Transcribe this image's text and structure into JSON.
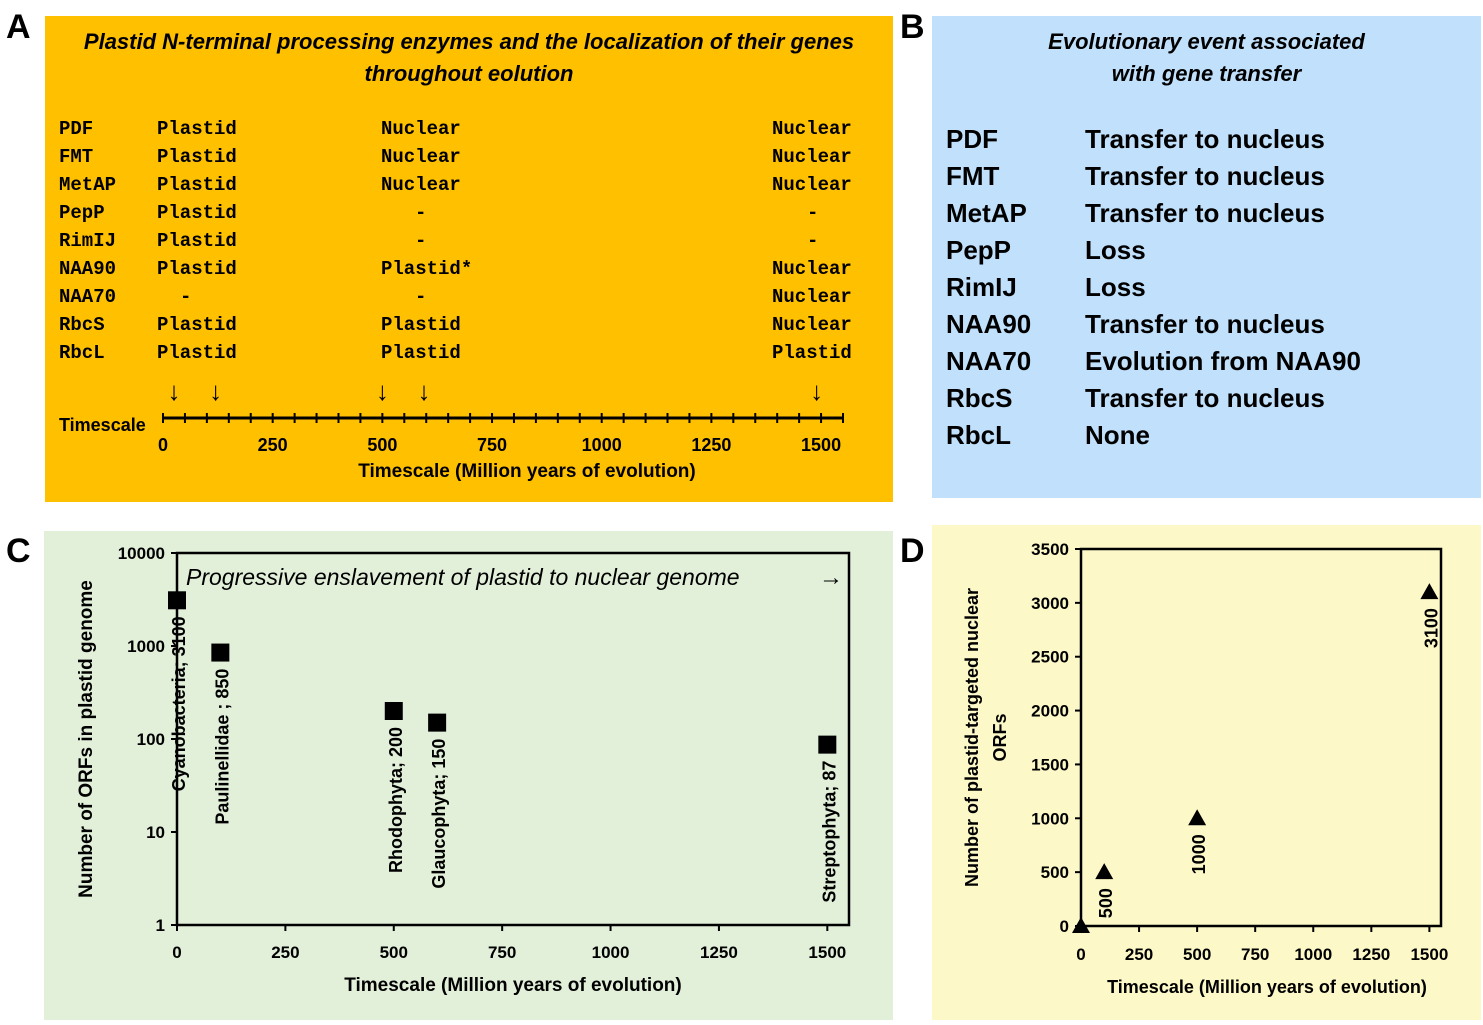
{
  "panelA": {
    "letter": "A",
    "title_line1": "Plastid N-terminal processing enzymes and the localization of their genes",
    "title_line2": "throughout eolution",
    "rows": [
      {
        "gene": "PDF",
        "c1": "Plastid",
        "c2": "Nuclear",
        "c3": "Nuclear"
      },
      {
        "gene": "FMT",
        "c1": "Plastid",
        "c2": "Nuclear",
        "c3": "Nuclear"
      },
      {
        "gene": "MetAP",
        "c1": "Plastid",
        "c2": "Nuclear",
        "c3": "Nuclear"
      },
      {
        "gene": "PepP",
        "c1": "Plastid",
        "c2": "-",
        "c3": "-"
      },
      {
        "gene": "RimIJ",
        "c1": "Plastid",
        "c2": "-",
        "c3": "-"
      },
      {
        "gene": "NAA90",
        "c1": "Plastid",
        "c2": "Plastid*",
        "c3": "Nuclear"
      },
      {
        "gene": "NAA70",
        "c1": "-",
        "c2": "-",
        "c3": "Nuclear"
      },
      {
        "gene": "RbcS",
        "c1": "Plastid",
        "c2": "Plastid",
        "c3": "Nuclear"
      },
      {
        "gene": "RbcL",
        "c1": "Plastid",
        "c2": "Plastid",
        "c3": "Plastid"
      }
    ],
    "timescale_label": "Timescale",
    "xlabel": "Timescale (Million years of evolution)",
    "arrow_glyph": "↓",
    "arrow_positions": [
      25,
      120,
      500,
      595,
      1490
    ],
    "xticks": [
      0,
      250,
      500,
      750,
      1000,
      1250,
      1500
    ],
    "xlim": [
      0,
      1550
    ]
  },
  "panelB": {
    "letter": "B",
    "title_line1": "Evolutionary event associated",
    "title_line2": "with gene transfer",
    "rows": [
      {
        "gene": "PDF",
        "event": "Transfer to nucleus"
      },
      {
        "gene": "FMT",
        "event": "Transfer to nucleus"
      },
      {
        "gene": "MetAP",
        "event": "Transfer to nucleus"
      },
      {
        "gene": "PepP",
        "event": "Loss"
      },
      {
        "gene": "RimIJ",
        "event": "Loss"
      },
      {
        "gene": "NAA90",
        "event": "Transfer to nucleus"
      },
      {
        "gene": "NAA70",
        "event": "Evolution from NAA90"
      },
      {
        "gene": "RbcS",
        "event": "Transfer to nucleus"
      },
      {
        "gene": "RbcL",
        "event": "None"
      }
    ]
  },
  "panelC": {
    "letter": "C"
  },
  "panelD": {
    "letter": "D"
  },
  "chart_data": [
    {
      "panel": "C",
      "type": "scatter",
      "annotation": "Progressive enslavement of plastid to nuclear genome",
      "annotation_arrow": "→",
      "xlabel": "Timescale (Million years of evolution)",
      "ylabel": "Number of ORFs in plastid genome",
      "xlim": [
        0,
        1550
      ],
      "ylim": [
        1,
        10000
      ],
      "yscale": "log",
      "xticks": [
        0,
        250,
        500,
        750,
        1000,
        1250,
        1500
      ],
      "yticks": [
        1,
        10,
        100,
        1000,
        10000
      ],
      "marker": "square",
      "points": [
        {
          "x": 0,
          "y": 3100,
          "label": "Cyanobacteria; 3100"
        },
        {
          "x": 100,
          "y": 850,
          "label": "Paulinellidae ; 850"
        },
        {
          "x": 500,
          "y": 200,
          "label": "Rhodophyta; 200"
        },
        {
          "x": 600,
          "y": 150,
          "label": "Glaucophyta; 150"
        },
        {
          "x": 1500,
          "y": 87,
          "label": "Streptophyta; 87"
        }
      ]
    },
    {
      "panel": "D",
      "type": "scatter",
      "xlabel": "Timescale (Million years of evolution)",
      "ylabel_line1": "Number of plastid-targeted nuclear",
      "ylabel_line2": "ORFs",
      "xlim": [
        0,
        1550
      ],
      "ylim": [
        0,
        3500
      ],
      "xticks": [
        0,
        250,
        500,
        750,
        1000,
        1250,
        1500
      ],
      "yticks": [
        0,
        500,
        1000,
        1500,
        2000,
        2500,
        3000,
        3500
      ],
      "marker": "triangle",
      "points": [
        {
          "x": 0,
          "y": 0,
          "label": ""
        },
        {
          "x": 100,
          "y": 500,
          "label": "500"
        },
        {
          "x": 500,
          "y": 1000,
          "label": "1000"
        },
        {
          "x": 1500,
          "y": 3100,
          "label": "3100"
        }
      ]
    }
  ]
}
